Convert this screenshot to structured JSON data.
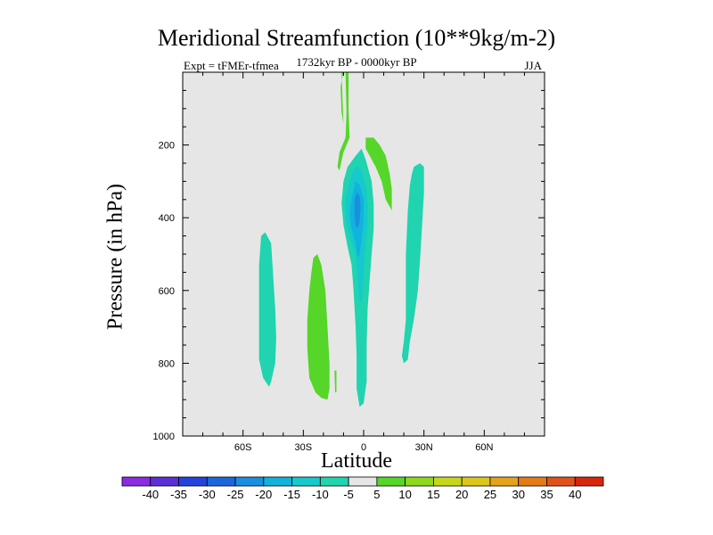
{
  "chart_data": {
    "type": "contour",
    "title": "Meridional Streamfunction (10**9kg/m-2)",
    "subtitle_left": "Expt = tFMEr-tfmea",
    "subtitle_center": "1732kyr BP - 0000kyr BP",
    "subtitle_right": "JJA",
    "xlabel": "Latitude",
    "ylabel": "Pressure (in hPa)",
    "xlim": [
      -90,
      90
    ],
    "ylim": [
      0,
      1000
    ],
    "x_ticks": [
      {
        "value": -60,
        "label": "60S"
      },
      {
        "value": -30,
        "label": "30S"
      },
      {
        "value": 0,
        "label": "0"
      },
      {
        "value": 30,
        "label": "30N"
      },
      {
        "value": 60,
        "label": "60N"
      }
    ],
    "y_ticks": [
      {
        "value": 200,
        "label": "200"
      },
      {
        "value": 400,
        "label": "400"
      },
      {
        "value": 600,
        "label": "600"
      },
      {
        "value": 800,
        "label": "800"
      },
      {
        "value": 1000,
        "label": "1000"
      }
    ],
    "background_color": "#e6e6e6",
    "colorbar": {
      "labels": [
        "-40",
        "-35",
        "-30",
        "-25",
        "-20",
        "-15",
        "-10",
        "-5",
        "5",
        "10",
        "15",
        "20",
        "25",
        "30",
        "35",
        "40"
      ],
      "colors": [
        "#8a2be2",
        "#5a2fd8",
        "#2244dd",
        "#1c66dd",
        "#1a8fde",
        "#11b2dc",
        "#15c9cc",
        "#20d4b0",
        "#e6e6e6",
        "#55d628",
        "#8ed81f",
        "#c4d818",
        "#ddc61a",
        "#e3a31b",
        "#e27b18",
        "#e0521a",
        "#d8260d"
      ]
    },
    "regions": [
      {
        "name": "green-strip-upper-thin",
        "value_class": 5,
        "color": "#55d628",
        "points": [
          [
            -11,
            0
          ],
          [
            -10,
            0
          ],
          [
            -11.5,
            40
          ],
          [
            -11,
            110
          ],
          [
            -10,
            140
          ]
        ]
      },
      {
        "name": "green-strip-upper-thin2",
        "value_class": 5,
        "color": "#55d628",
        "points": [
          [
            -9,
            0
          ],
          [
            -7.5,
            0
          ],
          [
            -7.5,
            100
          ],
          [
            -7,
            180
          ],
          [
            -10,
            220
          ],
          [
            -12,
            270
          ],
          [
            -13,
            260
          ],
          [
            -12,
            220
          ],
          [
            -9,
            180
          ],
          [
            -8.5,
            110
          ]
        ]
      },
      {
        "name": "green-wedge-200-380",
        "value_class": 5,
        "color": "#55d628",
        "points": [
          [
            1,
            180
          ],
          [
            5,
            180
          ],
          [
            8,
            200
          ],
          [
            11,
            230
          ],
          [
            13,
            280
          ],
          [
            14,
            320
          ],
          [
            14,
            380
          ],
          [
            11,
            350
          ],
          [
            9,
            300
          ],
          [
            6,
            260
          ],
          [
            3,
            230
          ],
          [
            1,
            210
          ]
        ]
      },
      {
        "name": "teal-column-south",
        "value_class": -5,
        "color": "#20d4b0",
        "points": [
          [
            -51,
            450
          ],
          [
            -49,
            440
          ],
          [
            -46,
            470
          ],
          [
            -45,
            560
          ],
          [
            -44,
            650
          ],
          [
            -43.5,
            730
          ],
          [
            -44,
            800
          ],
          [
            -46,
            850
          ],
          [
            -47,
            865
          ],
          [
            -50,
            840
          ],
          [
            -52,
            790
          ],
          [
            -52,
            700
          ],
          [
            -52,
            600
          ],
          [
            -52,
            530
          ]
        ]
      },
      {
        "name": "green-column",
        "value_class": 5,
        "color": "#55d628",
        "points": [
          [
            -25,
            510
          ],
          [
            -23,
            500
          ],
          [
            -21,
            530
          ],
          [
            -19,
            600
          ],
          [
            -18,
            700
          ],
          [
            -17,
            800
          ],
          [
            -17,
            870
          ],
          [
            -18,
            900
          ],
          [
            -21,
            895
          ],
          [
            -24,
            880
          ],
          [
            -27,
            840
          ],
          [
            -28,
            760
          ],
          [
            -28,
            680
          ],
          [
            -27,
            600
          ],
          [
            -26,
            550
          ]
        ]
      },
      {
        "name": "green-sliver-840",
        "value_class": 5,
        "color": "#55d628",
        "points": [
          [
            -14.5,
            820
          ],
          [
            -13.5,
            820
          ],
          [
            -13.5,
            880
          ],
          [
            -14.2,
            880
          ]
        ]
      },
      {
        "name": "teal-column-equator",
        "value_class": -5,
        "color": "#20d4b0",
        "points": [
          [
            -4,
            230
          ],
          [
            -1,
            210
          ],
          [
            1,
            240
          ],
          [
            4,
            300
          ],
          [
            5,
            360
          ],
          [
            5,
            430
          ],
          [
            4,
            500
          ],
          [
            3,
            570
          ],
          [
            2,
            650
          ],
          [
            1.5,
            750
          ],
          [
            1.5,
            850
          ],
          [
            0,
            910
          ],
          [
            -2,
            920
          ],
          [
            -3.5,
            870
          ],
          [
            -3.5,
            780
          ],
          [
            -4,
            700
          ],
          [
            -5,
            600
          ],
          [
            -6,
            530
          ],
          [
            -8,
            480
          ],
          [
            -10,
            420
          ],
          [
            -11,
            360
          ],
          [
            -10,
            300
          ],
          [
            -8,
            260
          ]
        ]
      },
      {
        "name": "cyan-core",
        "value_class": -10,
        "color": "#15c9cc",
        "points": [
          [
            -3,
            260
          ],
          [
            -1,
            270
          ],
          [
            1,
            310
          ],
          [
            2,
            360
          ],
          [
            2,
            420
          ],
          [
            1,
            470
          ],
          [
            0,
            560
          ],
          [
            -1,
            630
          ],
          [
            -2,
            630
          ],
          [
            -3,
            560
          ],
          [
            -4,
            500
          ],
          [
            -7,
            450
          ],
          [
            -9,
            400
          ],
          [
            -9,
            350
          ],
          [
            -7,
            300
          ],
          [
            -5,
            270
          ]
        ]
      },
      {
        "name": "blue-core",
        "value_class": -15,
        "color": "#11b2dc",
        "points": [
          [
            -4,
            300
          ],
          [
            -2,
            310
          ],
          [
            0,
            350
          ],
          [
            0,
            410
          ],
          [
            -1,
            460
          ],
          [
            -2,
            500
          ],
          [
            -3,
            510
          ],
          [
            -4,
            470
          ],
          [
            -6,
            430
          ],
          [
            -7,
            390
          ],
          [
            -6,
            350
          ]
        ]
      },
      {
        "name": "deep-blue-core",
        "value_class": -20,
        "color": "#1a8fde",
        "points": [
          [
            -3.5,
            330
          ],
          [
            -2,
            340
          ],
          [
            -1.5,
            370
          ],
          [
            -2,
            410
          ],
          [
            -3,
            430
          ],
          [
            -4,
            420
          ],
          [
            -4.5,
            390
          ],
          [
            -4.5,
            350
          ]
        ]
      },
      {
        "name": "teal-column-north",
        "value_class": -5,
        "color": "#20d4b0",
        "points": [
          [
            24,
            280
          ],
          [
            25,
            260
          ],
          [
            28,
            250
          ],
          [
            30,
            260
          ],
          [
            30,
            330
          ],
          [
            29,
            430
          ],
          [
            28,
            520
          ],
          [
            27,
            600
          ],
          [
            25,
            680
          ],
          [
            23,
            740
          ],
          [
            22,
            790
          ],
          [
            20,
            800
          ],
          [
            19,
            780
          ],
          [
            20,
            740
          ],
          [
            21,
            680
          ],
          [
            21,
            600
          ],
          [
            21,
            500
          ],
          [
            22,
            380
          ],
          [
            23,
            310
          ]
        ]
      }
    ]
  }
}
